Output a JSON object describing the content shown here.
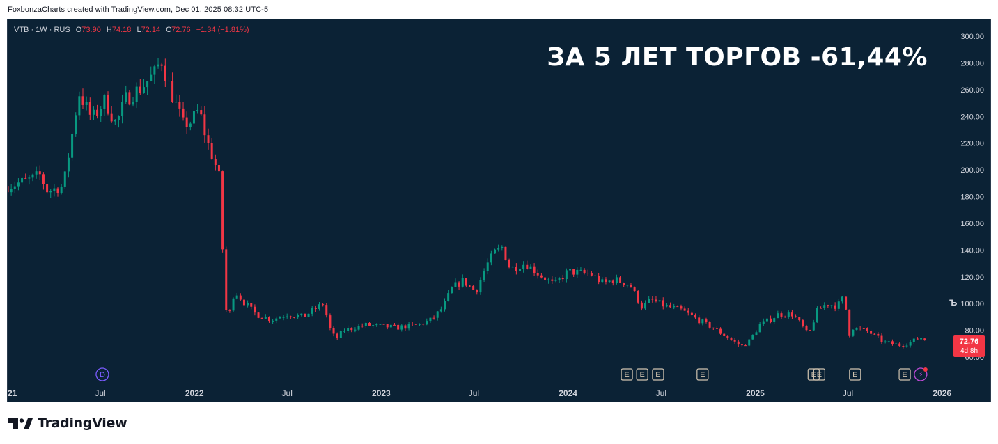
{
  "attribution": "FoxbonzaCharts created with TradingView.com, Dec 01, 2025 08:32 UTC-5",
  "legend": {
    "symbol": "VTB · 1W · RUS",
    "o_label": "O",
    "o_value": "73.90",
    "h_label": "H",
    "h_value": "74.18",
    "l_label": "L",
    "l_value": "72.14",
    "c_label": "C",
    "c_value": "72.76",
    "change": "−1.34 (−1.81%)"
  },
  "headline": "ЗА 5 ЛЕТ ТОРГОВ -61,44%",
  "price_tag": {
    "price": "72.76",
    "countdown": "4d 8h"
  },
  "side_glyph": "ъ",
  "footer": {
    "brand": "TradingView"
  },
  "colors": {
    "background": "#0b2235",
    "up": "#089981",
    "down": "#f23645",
    "axis_text": "#d1d4dc",
    "headline": "#ffffff",
    "earnings_badge": "#d1c4b0",
    "dividend_badge": "#7b5cff"
  },
  "chart_data": {
    "type": "candlestick",
    "symbol": "VTB",
    "interval": "1W",
    "ylim": [
      60,
      300
    ],
    "y_ticks": [
      "60.00",
      "80.00",
      "100.00",
      "120.00",
      "140.00",
      "160.00",
      "180.00",
      "200.00",
      "220.00",
      "240.00",
      "260.00",
      "280.00",
      "300.00"
    ],
    "y_tick_values": [
      60,
      80,
      100,
      120,
      140,
      160,
      180,
      200,
      220,
      240,
      260,
      280,
      300
    ],
    "x_start": "2021-01-01",
    "x_end": "2026-01-15",
    "x_ticks": [
      {
        "label": "2021",
        "date": "2021-01-01",
        "bold": true
      },
      {
        "label": "Jul",
        "date": "2021-07-01",
        "bold": false
      },
      {
        "label": "2022",
        "date": "2022-01-01",
        "bold": true
      },
      {
        "label": "Jul",
        "date": "2022-07-01",
        "bold": false
      },
      {
        "label": "2023",
        "date": "2023-01-01",
        "bold": true
      },
      {
        "label": "Jul",
        "date": "2023-07-01",
        "bold": false
      },
      {
        "label": "2024",
        "date": "2024-01-01",
        "bold": true
      },
      {
        "label": "Jul",
        "date": "2024-07-01",
        "bold": false
      },
      {
        "label": "2025",
        "date": "2025-01-01",
        "bold": true
      },
      {
        "label": "Jul",
        "date": "2025-07-01",
        "bold": false
      },
      {
        "label": "2026",
        "date": "2026-01-01",
        "bold": true
      }
    ],
    "grid": false,
    "last_price_line": 72.76,
    "close_keyframes": [
      [
        "2021-01-01",
        188
      ],
      [
        "2021-02-10",
        192
      ],
      [
        "2021-03-05",
        196
      ],
      [
        "2021-03-20",
        184
      ],
      [
        "2021-04-20",
        188
      ],
      [
        "2021-05-05",
        222
      ],
      [
        "2021-05-20",
        258
      ],
      [
        "2021-06-15",
        238
      ],
      [
        "2021-07-10",
        252
      ],
      [
        "2021-08-01",
        234
      ],
      [
        "2021-08-20",
        253
      ],
      [
        "2021-09-20",
        262
      ],
      [
        "2021-10-15",
        272
      ],
      [
        "2021-10-28",
        283
      ],
      [
        "2021-11-15",
        260
      ],
      [
        "2021-12-10",
        234
      ],
      [
        "2021-12-25",
        236
      ],
      [
        "2022-01-10",
        245
      ],
      [
        "2022-01-25",
        222
      ],
      [
        "2022-02-10",
        205
      ],
      [
        "2022-02-20",
        192
      ],
      [
        "2022-03-01",
        100
      ],
      [
        "2022-03-08",
        88
      ],
      [
        "2022-03-20",
        110
      ],
      [
        "2022-04-10",
        100
      ],
      [
        "2022-05-01",
        92
      ],
      [
        "2022-06-01",
        88
      ],
      [
        "2022-07-01",
        92
      ],
      [
        "2022-08-01",
        90
      ],
      [
        "2022-09-10",
        100
      ],
      [
        "2022-09-25",
        78
      ],
      [
        "2022-10-05",
        74
      ],
      [
        "2022-10-20",
        80
      ],
      [
        "2022-12-01",
        84
      ],
      [
        "2023-02-01",
        82
      ],
      [
        "2023-03-15",
        84
      ],
      [
        "2023-04-10",
        88
      ],
      [
        "2023-05-01",
        97
      ],
      [
        "2023-05-20",
        112
      ],
      [
        "2023-06-10",
        117
      ],
      [
        "2023-07-05",
        109
      ],
      [
        "2023-07-25",
        128
      ],
      [
        "2023-08-10",
        138
      ],
      [
        "2023-08-25",
        142
      ],
      [
        "2023-09-10",
        126
      ],
      [
        "2023-10-10",
        130
      ],
      [
        "2023-11-05",
        122
      ],
      [
        "2023-12-05",
        114
      ],
      [
        "2024-01-01",
        124
      ],
      [
        "2024-02-15",
        122
      ],
      [
        "2024-03-10",
        115
      ],
      [
        "2024-04-01",
        118
      ],
      [
        "2024-05-01",
        114
      ],
      [
        "2024-05-25",
        97
      ],
      [
        "2024-06-10",
        103
      ],
      [
        "2024-07-10",
        98
      ],
      [
        "2024-08-10",
        95
      ],
      [
        "2024-09-10",
        88
      ],
      [
        "2024-10-10",
        82
      ],
      [
        "2024-11-10",
        74
      ],
      [
        "2024-12-05",
        68
      ],
      [
        "2024-12-20",
        72
      ],
      [
        "2025-01-10",
        84
      ],
      [
        "2025-01-25",
        87
      ],
      [
        "2025-02-15",
        92
      ],
      [
        "2025-03-15",
        92
      ],
      [
        "2025-04-01",
        84
      ],
      [
        "2025-04-15",
        76
      ],
      [
        "2025-05-01",
        94
      ],
      [
        "2025-05-20",
        100
      ],
      [
        "2025-06-10",
        98
      ],
      [
        "2025-06-25",
        106
      ],
      [
        "2025-07-01",
        75
      ],
      [
        "2025-07-10",
        82
      ],
      [
        "2025-08-10",
        79
      ],
      [
        "2025-09-10",
        71
      ],
      [
        "2025-10-10",
        69
      ],
      [
        "2025-11-01",
        71
      ],
      [
        "2025-11-20",
        75
      ],
      [
        "2025-11-28",
        72.76
      ]
    ],
    "last_candle": {
      "date": "2025-11-28",
      "open": 73.9,
      "high": 74.18,
      "low": 72.14,
      "close": 72.76
    },
    "events": [
      {
        "type": "dividend",
        "label": "D",
        "date": "2021-07-05"
      },
      {
        "type": "earnings",
        "label": "E",
        "date": "2024-04-25"
      },
      {
        "type": "earnings",
        "label": "E",
        "date": "2024-05-25"
      },
      {
        "type": "earnings",
        "label": "E",
        "date": "2024-06-25"
      },
      {
        "type": "earnings",
        "label": "E",
        "date": "2024-09-20"
      },
      {
        "type": "earnings",
        "label": "E",
        "date": "2025-04-25"
      },
      {
        "type": "earnings",
        "label": "E",
        "date": "2025-05-06"
      },
      {
        "type": "earnings",
        "label": "E",
        "date": "2025-07-15"
      },
      {
        "type": "earnings",
        "label": "E",
        "date": "2025-10-20"
      },
      {
        "type": "flash",
        "label": "⚡",
        "date": "2025-11-20"
      }
    ]
  }
}
